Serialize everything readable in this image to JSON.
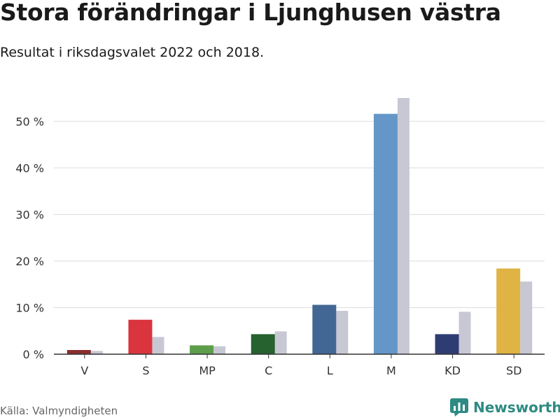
{
  "header": {
    "title": "Stora förändringar i Ljunghusen västra",
    "subtitle": "Resultat i riksdagsvalet 2022 och 2018."
  },
  "footer": {
    "source": "Källa: Valmyndigheten",
    "brand": "Newsworthy"
  },
  "colors": {
    "comparison_bar": "#c8c8d4",
    "grid": "#dcdcdc",
    "axis": "#333333",
    "brand": "#2e8b83"
  },
  "chart_data": {
    "type": "bar",
    "categories": [
      "V",
      "S",
      "MP",
      "C",
      "L",
      "M",
      "KD",
      "SD"
    ],
    "series": [
      {
        "name": "",
        "values": [
          0.9,
          7.4,
          1.9,
          4.3,
          10.6,
          51.6,
          4.3,
          18.4
        ],
        "colors": [
          "#8b2d2d",
          "#da343e",
          "#5e9e4b",
          "#266130",
          "#436794",
          "#6497c8",
          "#2e3c74",
          "#dfb444"
        ]
      },
      {
        "name": "",
        "values": [
          0.7,
          3.7,
          1.7,
          4.9,
          9.3,
          55.0,
          9.1,
          15.6
        ],
        "colors": [
          "#c8c8d4",
          "#c8c8d4",
          "#c8c8d4",
          "#c8c8d4",
          "#c8c8d4",
          "#c8c8d4",
          "#c8c8d4",
          "#c8c8d4"
        ]
      }
    ],
    "ylim": [
      0,
      55
    ],
    "yticks": [
      0,
      10,
      20,
      30,
      40,
      50
    ],
    "ytick_labels": [
      "0 %",
      "10 %",
      "20 %",
      "30 %",
      "40 %",
      "50 %"
    ],
    "grid": true,
    "legend": "none"
  }
}
